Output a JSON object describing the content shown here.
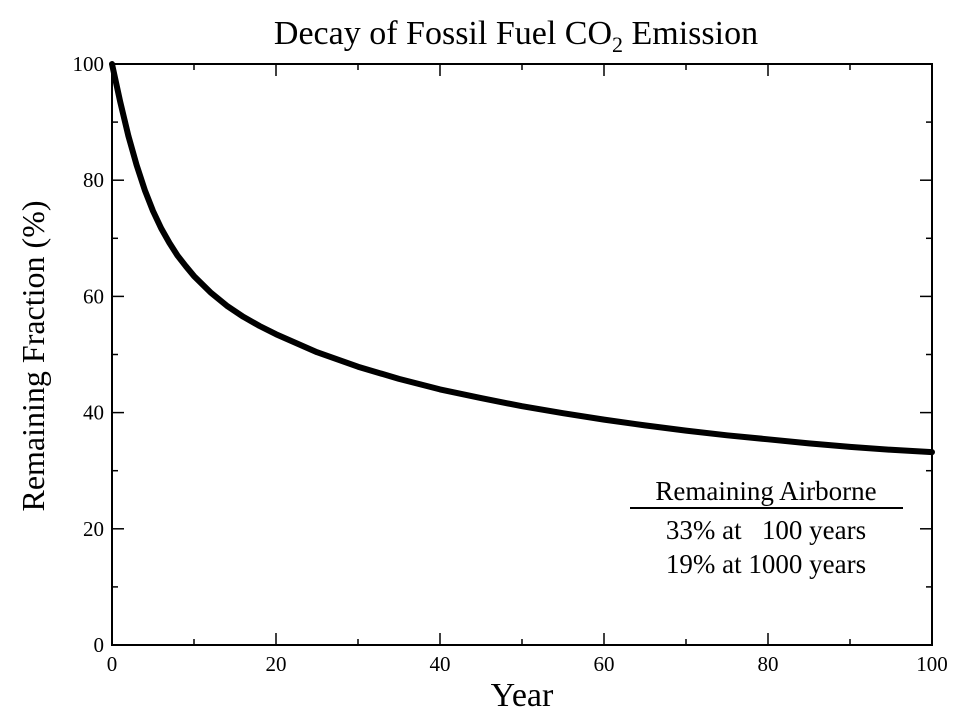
{
  "chart_data": {
    "type": "line",
    "title_main": "Decay of Fossil Fuel CO",
    "title_sub": "2",
    "title_rest": " Emission",
    "xlabel": "Year",
    "ylabel": "Remaining Fraction (%)",
    "xlim": [
      0,
      100
    ],
    "ylim": [
      0,
      100
    ],
    "xticks": [
      0,
      20,
      40,
      60,
      80,
      100
    ],
    "yticks": [
      0,
      20,
      40,
      60,
      80,
      100
    ],
    "xminor_step": 10,
    "yminor_step": 10,
    "grid": false,
    "line_color": "#000000",
    "series": [
      {
        "x": [
          0,
          1,
          2,
          3,
          4,
          5,
          6,
          7,
          8,
          9,
          10,
          12,
          14,
          16,
          18,
          20,
          25,
          30,
          35,
          40,
          45,
          50,
          55,
          60,
          65,
          70,
          75,
          80,
          85,
          90,
          95,
          100
        ],
        "values": [
          100,
          93.5,
          87.6,
          82.6,
          78.3,
          74.7,
          71.7,
          69.2,
          67.0,
          65.2,
          63.5,
          60.7,
          58.4,
          56.5,
          54.9,
          53.5,
          50.4,
          47.9,
          45.8,
          44.0,
          42.5,
          41.1,
          39.9,
          38.8,
          37.8,
          36.9,
          36.1,
          35.4,
          34.7,
          34.1,
          33.6,
          33.2
        ]
      }
    ],
    "annotation": {
      "heading": "Remaining Airborne",
      "lines": [
        "33% at   100 years",
        "19% at 1000 years"
      ]
    }
  }
}
